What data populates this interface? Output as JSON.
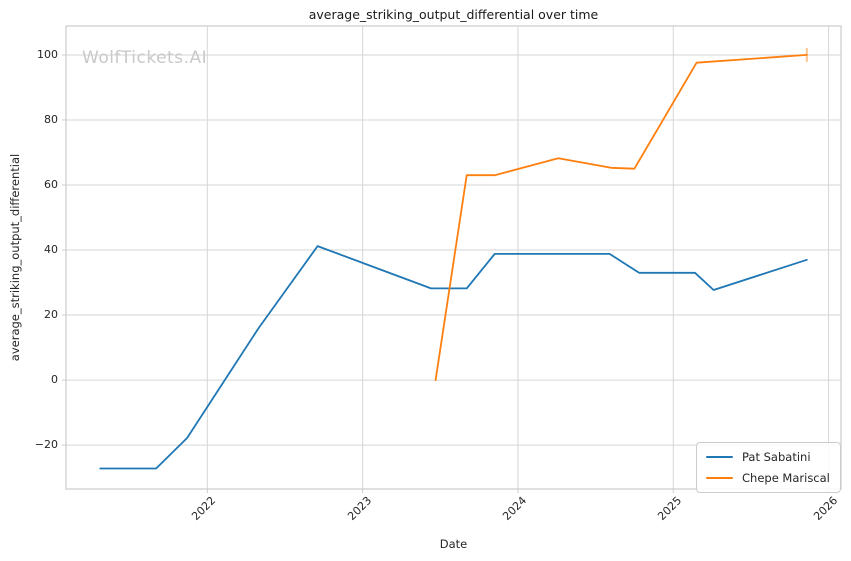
{
  "watermark": {
    "text": "WolfTickets.AI",
    "color": "#c9c9c9"
  },
  "chart_data": {
    "type": "line",
    "title": "average_striking_output_differential over time",
    "xlabel": "Date",
    "ylabel": "average_striking_output_differential",
    "xlim": [
      2021.09,
      2026.08
    ],
    "ylim": [
      -33.5,
      108.9
    ],
    "grid": true,
    "grid_color": "#d6d6d6",
    "axes_edge_color": "#cccccc",
    "legend_position": "lower right",
    "xticks": [
      {
        "value": 2022,
        "label": "2022"
      },
      {
        "value": 2023,
        "label": "2023"
      },
      {
        "value": 2024,
        "label": "2024"
      },
      {
        "value": 2025,
        "label": "2025"
      },
      {
        "value": 2026,
        "label": "2026"
      }
    ],
    "yticks": [
      {
        "value": -20,
        "label": "−20"
      },
      {
        "value": 0,
        "label": "0"
      },
      {
        "value": 20,
        "label": "20"
      },
      {
        "value": 40,
        "label": "40"
      },
      {
        "value": 60,
        "label": "60"
      },
      {
        "value": 80,
        "label": "80"
      },
      {
        "value": 100,
        "label": "100"
      }
    ],
    "series": [
      {
        "name": "Pat Sabatini",
        "color": "#1f77b4",
        "end_tick": false,
        "points": [
          [
            2021.31,
            -27.2
          ],
          [
            2021.67,
            -27.2
          ],
          [
            2021.87,
            -17.8
          ],
          [
            2022.33,
            16.0
          ],
          [
            2022.71,
            41.2
          ],
          [
            2023.44,
            28.2
          ],
          [
            2023.67,
            28.2
          ],
          [
            2023.85,
            38.8
          ],
          [
            2024.59,
            38.8
          ],
          [
            2024.78,
            33.0
          ],
          [
            2025.14,
            33.0
          ],
          [
            2025.26,
            27.7
          ],
          [
            2025.86,
            37.0
          ]
        ]
      },
      {
        "name": "Chepe Mariscal",
        "color": "#ff7f0e",
        "end_tick": true,
        "points": [
          [
            2023.47,
            0.0
          ],
          [
            2023.67,
            63.0
          ],
          [
            2023.85,
            63.0
          ],
          [
            2024.26,
            68.2
          ],
          [
            2024.6,
            65.3
          ],
          [
            2024.75,
            65.0
          ],
          [
            2025.15,
            97.6
          ],
          [
            2025.86,
            100.0
          ]
        ]
      }
    ]
  }
}
